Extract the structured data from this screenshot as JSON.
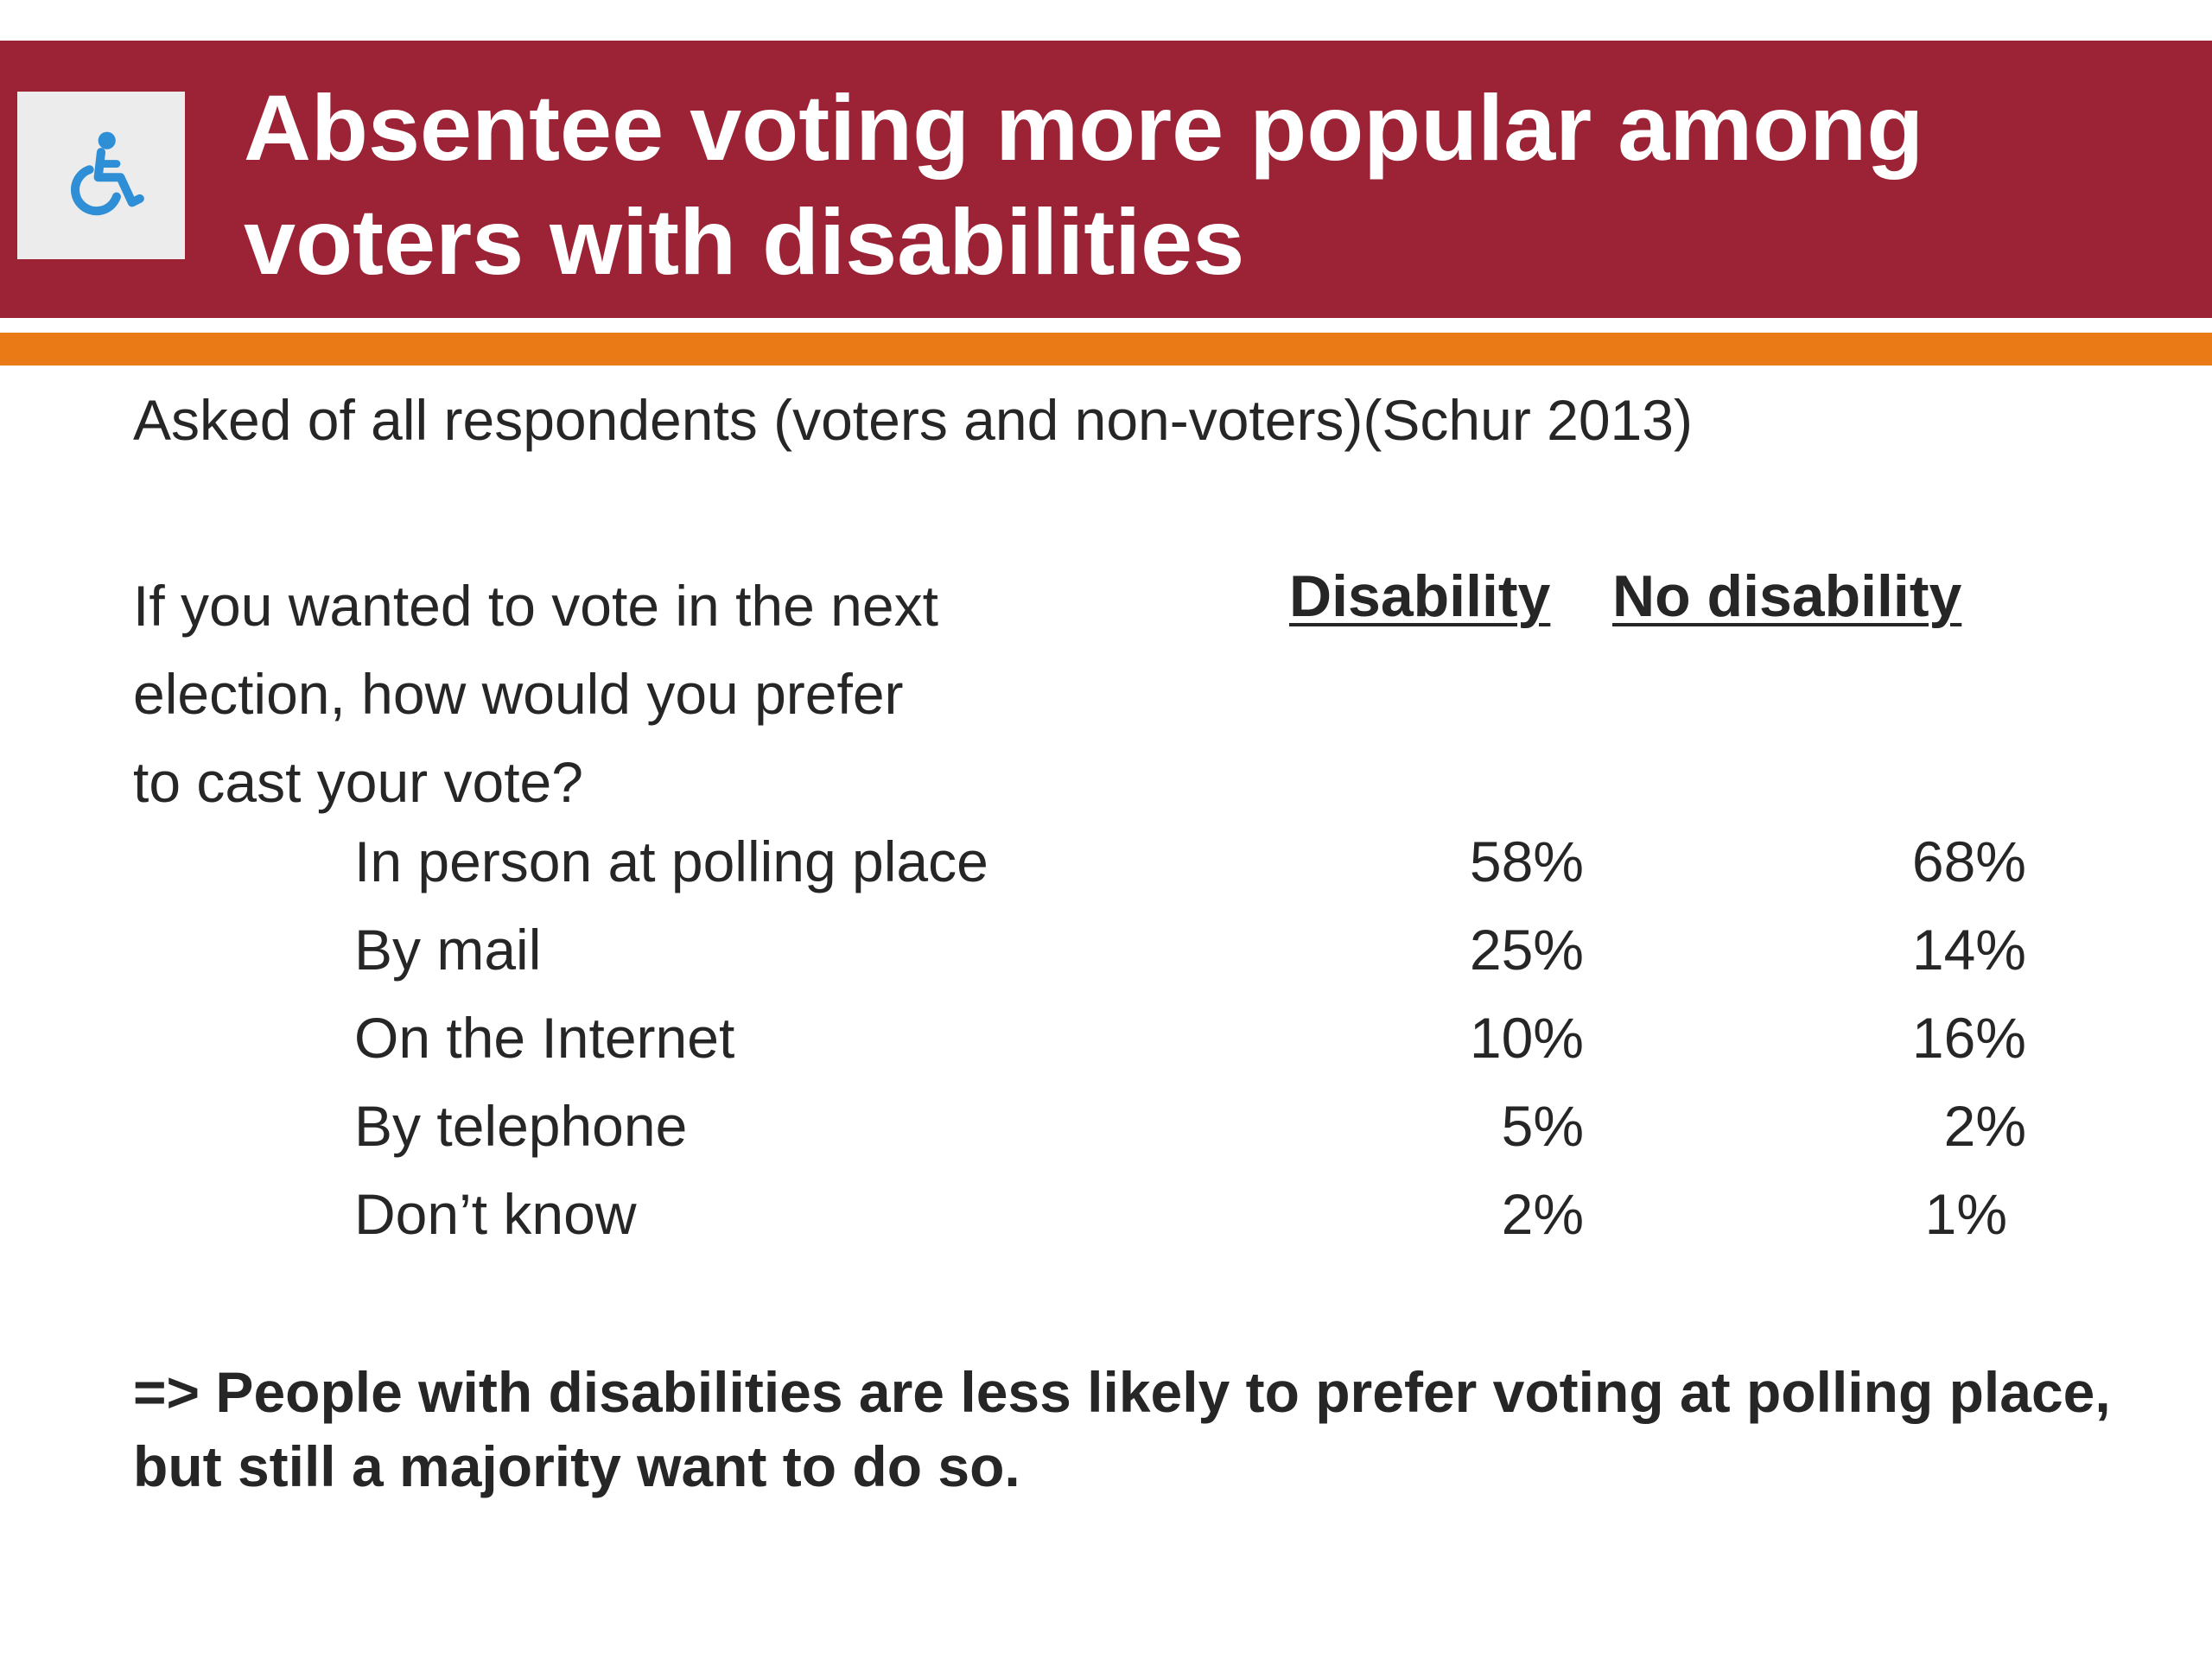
{
  "header": {
    "icon": "wheelchair-icon",
    "title_line1": "Absentee voting more popular among",
    "title_line2": "voters with disabilities",
    "bar_color": "#9b2335",
    "accent_color": "#ea7a15",
    "icon_color": "#2f8fd6"
  },
  "subtitle": "Asked of all respondents (voters and non-voters)(Schur 2013)",
  "question": {
    "line1": "If you wanted to vote in the next",
    "line2": "election, how would you prefer",
    "line3": "to cast your vote?"
  },
  "table": {
    "columns": [
      "Disability",
      "No disability"
    ],
    "rows": [
      {
        "label": "In person at polling place",
        "disability": "58%",
        "no_disability": "68%"
      },
      {
        "label": "By mail",
        "disability": "25%",
        "no_disability": "14%"
      },
      {
        "label": "On the Internet",
        "disability": "10%",
        "no_disability": "16%"
      },
      {
        "label": "By telephone",
        "disability": "5%",
        "no_disability": "2%"
      },
      {
        "label": "Don’t know",
        "disability": "2%",
        "no_disability": "1%"
      }
    ]
  },
  "conclusion": "=> People with disabilities are less likely to prefer voting at polling place, but still a majority want to do so."
}
